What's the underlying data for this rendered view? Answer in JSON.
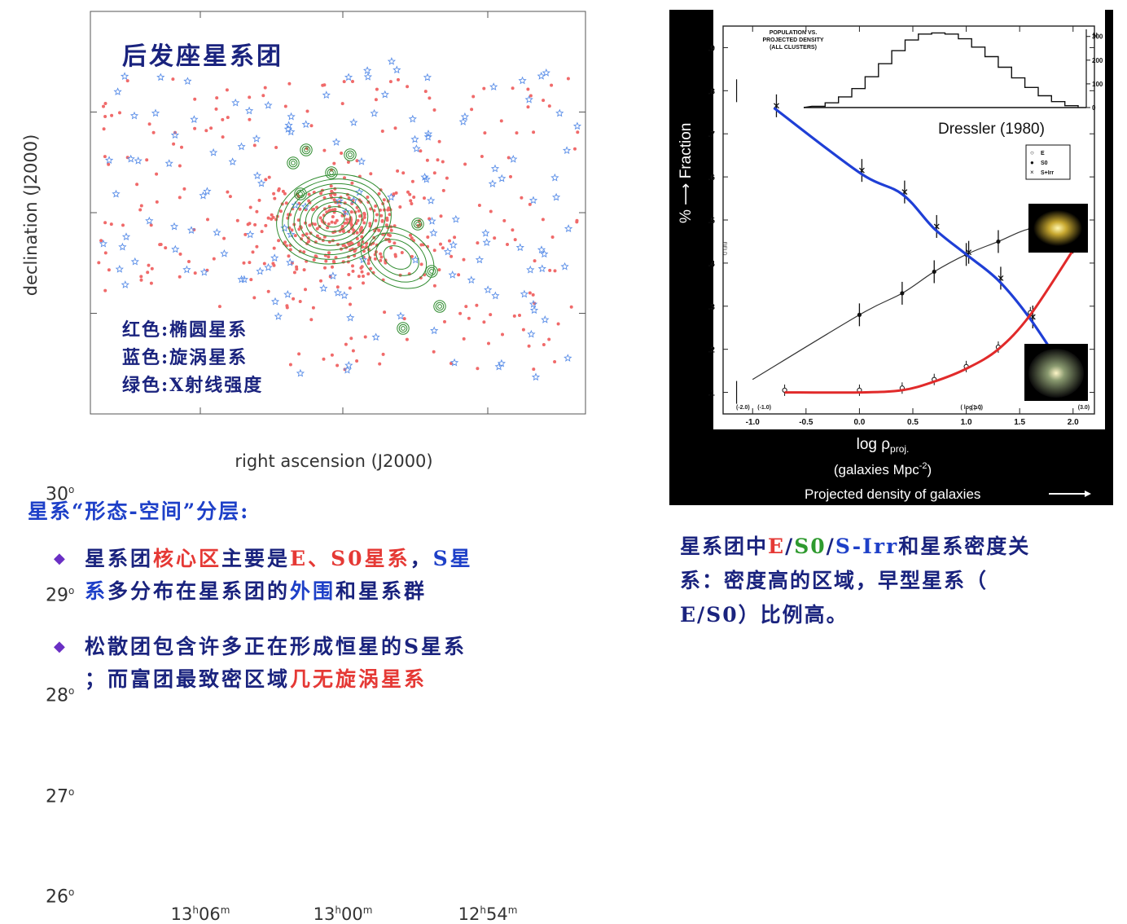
{
  "left_chart": {
    "chart_data": {
      "type": "scatter",
      "title": "后发座星系团",
      "xlabel": "right ascension (J2000)",
      "ylabel": "declination (J2000)",
      "yticks": [
        {
          "label": "30",
          "sup": "o",
          "value": 30
        },
        {
          "label": "29",
          "sup": "o",
          "value": 29
        },
        {
          "label": "28",
          "sup": "o",
          "value": 28
        },
        {
          "label": "27",
          "sup": "o",
          "value": 27
        },
        {
          "label": "26",
          "sup": "o",
          "value": 26
        }
      ],
      "xticks": [
        {
          "h": "13",
          "m": "06",
          "hm": "13h06m"
        },
        {
          "h": "13",
          "m": "00",
          "hm": "13h00m"
        },
        {
          "h": "12",
          "m": "54",
          "hm": "12h54m"
        }
      ],
      "ylim": [
        26,
        30
      ],
      "series": [
        {
          "name": "红色:椭圆星系",
          "marker": "dot",
          "color": "#f06a6a"
        },
        {
          "name": "蓝色:旋涡星系",
          "marker": "star",
          "color": "#5a8ee8"
        },
        {
          "name": "绿色:X射线强度",
          "marker": "contour",
          "color": "#2e8b2e"
        }
      ],
      "center": {
        "ra": "13h00m",
        "dec": 28
      }
    },
    "legend_lines": [
      {
        "label": "红色:椭圆星系",
        "latin": ""
      },
      {
        "label": "蓝色:旋涡星系",
        "latin": ""
      },
      {
        "label_pre": "绿色:",
        "latin": "X",
        "label_post": "射线强度"
      }
    ]
  },
  "right_chart": {
    "chart_data": {
      "type": "line",
      "credit": "Dressler (1980)",
      "xlabel_main": "log ρ",
      "xlabel_sub": "proj.",
      "xlabel_units": "(galaxies Mpc",
      "xlabel_units_sup": "-2",
      "xlabel_units_close": ")",
      "xlabel_desc": "Projected density of galaxies",
      "ylabel": "% ⟶ Fraction",
      "xticks": [
        "-1.0",
        "-0.5",
        "0.0",
        "0.5",
        "1.0",
        "1.5",
        "2.0"
      ],
      "xlim": [
        -1.2,
        2.2
      ],
      "yticks": [
        ".1",
        ".2",
        ".3",
        ".4",
        ".5",
        ".6",
        ".7",
        ".8",
        ".9"
      ],
      "ylim": [
        0.05,
        0.95
      ],
      "inner_axis_labels": [
        "(-2.0)",
        "(-1.0)",
        "( log ρ )",
        "(1.0)",
        "(3.0)"
      ],
      "field_label": "FIELD",
      "legend": [
        {
          "symbol": "○",
          "label": "E"
        },
        {
          "symbol": "●",
          "label": "S0"
        },
        {
          "symbol": "×",
          "label": "S+Irr"
        }
      ],
      "series": [
        {
          "name": "S+Irr",
          "color": "#1f3fd6",
          "x": [
            -0.8,
            0.0,
            0.4,
            0.7,
            1.0,
            1.3,
            1.6,
            2.0
          ],
          "y": [
            0.76,
            0.61,
            0.56,
            0.48,
            0.42,
            0.36,
            0.27,
            0.12
          ]
        },
        {
          "name": "S0",
          "color": "#333333",
          "x": [
            0.0,
            0.4,
            0.7,
            1.0,
            1.3,
            1.6,
            2.0
          ],
          "y": [
            0.28,
            0.33,
            0.38,
            0.42,
            0.45,
            0.48,
            0.49
          ]
        },
        {
          "name": "E",
          "color": "#e12a2a",
          "x": [
            -0.7,
            0.0,
            0.4,
            0.7,
            1.0,
            1.3,
            1.6,
            2.0
          ],
          "y": [
            0.1,
            0.1,
            0.105,
            0.125,
            0.155,
            0.2,
            0.28,
            0.43
          ]
        }
      ],
      "inset": {
        "title_lines": [
          "POPULATION VS.",
          "PROJECTED DENSITY",
          "(ALL CLUSTERS)"
        ],
        "n_label": "N",
        "n_ticks": [
          "300",
          "200",
          "100",
          "0"
        ],
        "histogram": [
          5,
          20,
          45,
          80,
          130,
          185,
          240,
          285,
          310,
          315,
          310,
          290,
          255,
          215,
          170,
          125,
          85,
          50,
          25,
          8
        ]
      }
    }
  },
  "left_text": {
    "heading": "星系“形态-空间”分层:",
    "bullet1": [
      {
        "t": "星系团",
        "c": "navy"
      },
      {
        "t": "核心区",
        "c": "red"
      },
      {
        "t": "主要是",
        "c": "navy"
      },
      {
        "t": "E、S0",
        "c": "red"
      },
      {
        "t": "星系",
        "c": "red"
      },
      {
        "t": "，",
        "c": "navy"
      },
      {
        "t": "S星",
        "c": "blue"
      }
    ],
    "bullet1_line2": [
      {
        "t": "系",
        "c": "blue"
      },
      {
        "t": "多分布在星系团的",
        "c": "navy"
      },
      {
        "t": "外围",
        "c": "blue"
      },
      {
        "t": "和星系群",
        "c": "navy"
      }
    ],
    "bullet2_line1": "松散团包含许多正在形成恒星的S星系",
    "bullet2_line2_pre": "；而富团最致密区域",
    "bullet2_line2_red": "几无旋涡星系"
  },
  "right_text": {
    "line1": [
      {
        "t": "星系团中",
        "c": "navy"
      },
      {
        "t": "E",
        "c": "red"
      },
      {
        "t": "/",
        "c": "navy"
      },
      {
        "t": "S0",
        "c": "green"
      },
      {
        "t": "/",
        "c": "navy"
      },
      {
        "t": "S-Irr",
        "c": "blue"
      },
      {
        "t": "和星系密度关",
        "c": "navy"
      }
    ],
    "line2": "系：密度高的区域，早型星系（",
    "line3": "E/S0）比例高。"
  }
}
